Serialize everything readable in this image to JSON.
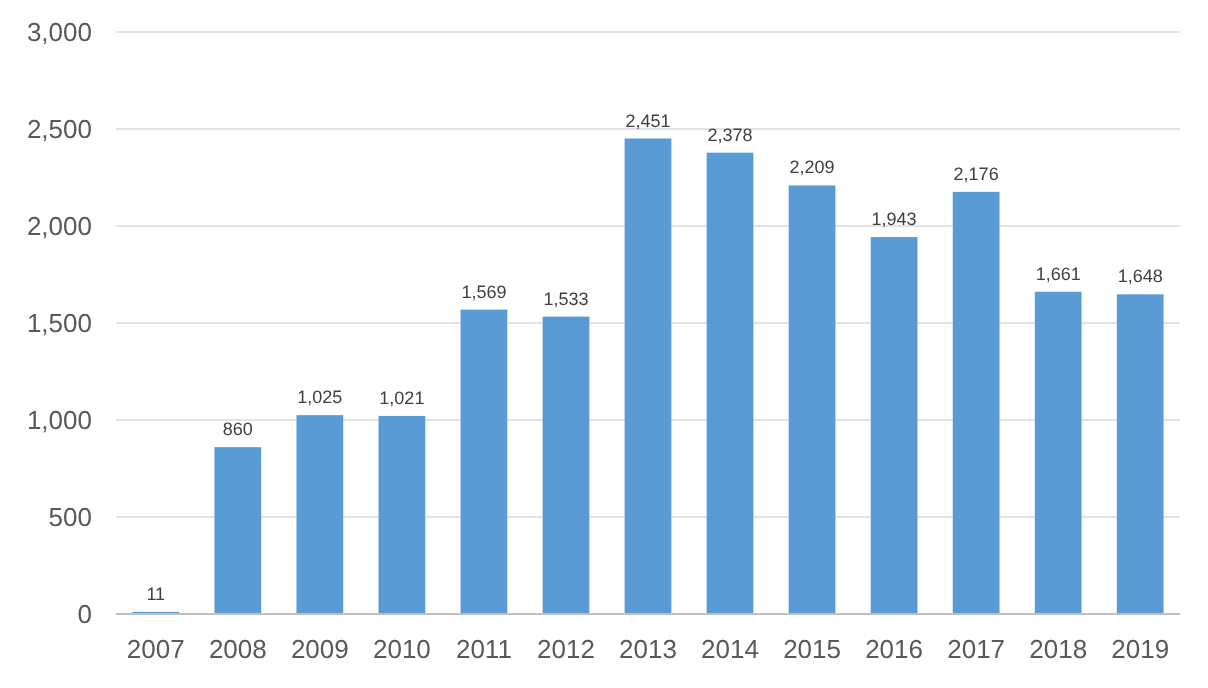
{
  "chart_data": {
    "type": "bar",
    "categories": [
      "2007",
      "2008",
      "2009",
      "2010",
      "2011",
      "2012",
      "2013",
      "2014",
      "2015",
      "2016",
      "2017",
      "2018",
      "2019"
    ],
    "values": [
      11,
      860,
      1025,
      1021,
      1569,
      1533,
      2451,
      2378,
      2209,
      1943,
      2176,
      1661,
      1648
    ],
    "value_labels": [
      "11",
      "860",
      "1,025",
      "1,021",
      "1,569",
      "1,533",
      "2,451",
      "2,378",
      "2,209",
      "1,943",
      "2,176",
      "1,661",
      "1,648"
    ],
    "color": "#5b9bd5",
    "ylim": [
      0,
      3000
    ],
    "yticks": [
      {
        "value": 0,
        "label": "0"
      },
      {
        "value": 500,
        "label": "500"
      },
      {
        "value": 1000,
        "label": "1,000"
      },
      {
        "value": 1500,
        "label": "1,500"
      },
      {
        "value": 2000,
        "label": "2,000"
      },
      {
        "value": 2500,
        "label": "2,500"
      },
      {
        "value": 3000,
        "label": "3,000"
      }
    ],
    "grid": "y"
  }
}
